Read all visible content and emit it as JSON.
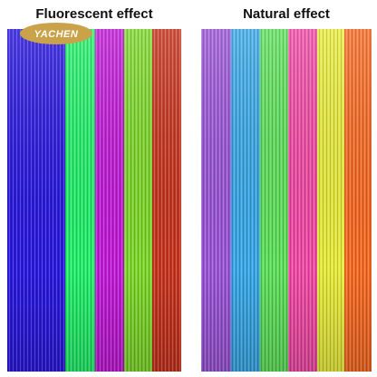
{
  "logo": "YACHEN",
  "panels": [
    {
      "title": "Fluorescent effect"
    },
    {
      "title": "Natural effect"
    }
  ]
}
